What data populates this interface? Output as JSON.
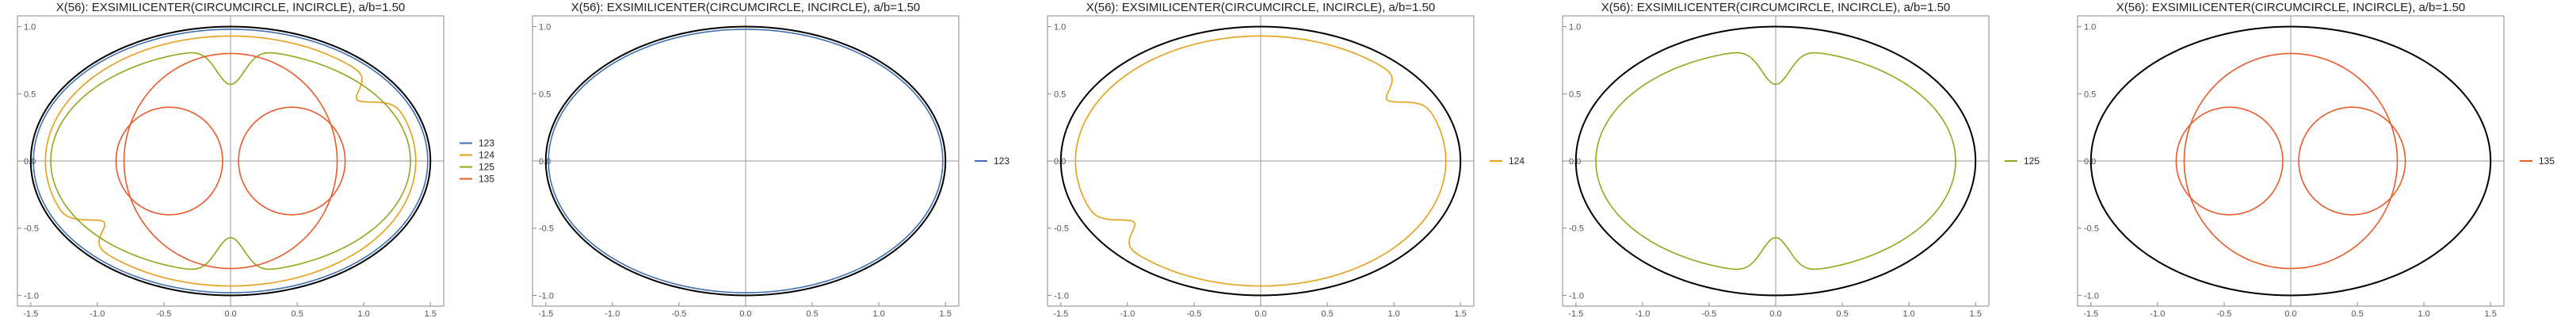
{
  "chart_data": [
    {
      "type": "line",
      "title": "X(56): EXSIMILICENTER(CIRCUMCIRCLE, INCIRCLE), a/b=1.50",
      "xlim": [
        -1.6,
        1.6
      ],
      "ylim": [
        -1.08,
        1.08
      ],
      "xticks": [
        "-1.5",
        "-1.0",
        "-0.5",
        "0.0",
        "0.5",
        "1.0",
        "1.5"
      ],
      "yticks": [
        "-1.0",
        "-0.5",
        "0.0",
        "0.5",
        "1.0"
      ],
      "legend": "right",
      "reference": {
        "shape": "ellipse",
        "a": 1.5,
        "b": 1.0,
        "color": "#000000"
      },
      "series": [
        {
          "name": "123",
          "color": "#3e6fb0",
          "shape": "ellipse",
          "a": 1.48,
          "b": 0.98
        },
        {
          "name": "124",
          "color": "#e69f19",
          "shape": "cardioid-oneside",
          "a": 1.39,
          "b": 0.93
        },
        {
          "name": "125",
          "color": "#8fa81c",
          "shape": "double-cusp",
          "a": 1.35,
          "b": 0.83
        },
        {
          "name": "135",
          "color": "#e85b2a",
          "shape": "circle-and-lobes",
          "r": 0.8,
          "lobe_x": 0.46,
          "lobe_r": 0.4
        }
      ]
    },
    {
      "type": "line",
      "title": "X(56): EXSIMILICENTER(CIRCUMCIRCLE, INCIRCLE), a/b=1.50",
      "xlim": [
        -1.6,
        1.6
      ],
      "ylim": [
        -1.08,
        1.08
      ],
      "xticks": [
        "-1.5",
        "-1.0",
        "-0.5",
        "0.0",
        "0.5",
        "1.0",
        "1.5"
      ],
      "yticks": [
        "-1.0",
        "-0.5",
        "0.0",
        "0.5",
        "1.0"
      ],
      "legend": "right",
      "reference": {
        "shape": "ellipse",
        "a": 1.5,
        "b": 1.0,
        "color": "#000000"
      },
      "series": [
        {
          "name": "123",
          "color": "#3e6fb0",
          "shape": "ellipse",
          "a": 1.48,
          "b": 0.98
        }
      ]
    },
    {
      "type": "line",
      "title": "X(56): EXSIMILICENTER(CIRCUMCIRCLE, INCIRCLE), a/b=1.50",
      "xlim": [
        -1.6,
        1.6
      ],
      "ylim": [
        -1.08,
        1.08
      ],
      "xticks": [
        "-1.5",
        "-1.0",
        "-0.5",
        "0.0",
        "0.5",
        "1.0",
        "1.5"
      ],
      "yticks": [
        "-1.0",
        "-0.5",
        "0.0",
        "0.5",
        "1.0"
      ],
      "legend": "right",
      "reference": {
        "shape": "ellipse",
        "a": 1.5,
        "b": 1.0,
        "color": "#000000"
      },
      "series": [
        {
          "name": "124",
          "color": "#e69f19",
          "shape": "cardioid-oneside",
          "a": 1.39,
          "b": 0.93
        }
      ]
    },
    {
      "type": "line",
      "title": "X(56): EXSIMILICENTER(CIRCUMCIRCLE, INCIRCLE), a/b=1.50",
      "xlim": [
        -1.6,
        1.6
      ],
      "ylim": [
        -1.08,
        1.08
      ],
      "xticks": [
        "-1.5",
        "-1.0",
        "-0.5",
        "0.0",
        "0.5",
        "1.0",
        "1.5"
      ],
      "yticks": [
        "-1.0",
        "-0.5",
        "0.0",
        "0.5",
        "1.0"
      ],
      "legend": "right",
      "reference": {
        "shape": "ellipse",
        "a": 1.5,
        "b": 1.0,
        "color": "#000000"
      },
      "series": [
        {
          "name": "125",
          "color": "#8fa81c",
          "shape": "double-cusp",
          "a": 1.35,
          "b": 0.83
        }
      ]
    },
    {
      "type": "line",
      "title": "X(56): EXSIMILICENTER(CIRCUMCIRCLE, INCIRCLE), a/b=1.50",
      "xlim": [
        -1.6,
        1.6
      ],
      "ylim": [
        -1.08,
        1.08
      ],
      "xticks": [
        "-1.5",
        "-1.0",
        "-0.5",
        "0.0",
        "0.5",
        "1.0",
        "1.5"
      ],
      "yticks": [
        "-1.0",
        "-0.5",
        "0.0",
        "0.5",
        "1.0"
      ],
      "legend": "right",
      "reference": {
        "shape": "ellipse",
        "a": 1.5,
        "b": 1.0,
        "color": "#000000"
      },
      "series": [
        {
          "name": "135",
          "color": "#e85b2a",
          "shape": "circle-and-lobes",
          "r": 0.8,
          "lobe_x": 0.46,
          "lobe_r": 0.4
        }
      ]
    }
  ]
}
